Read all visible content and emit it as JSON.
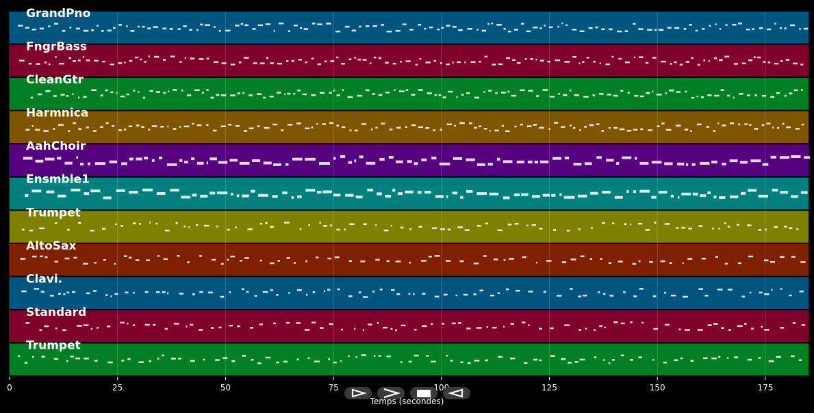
{
  "chart_data": {
    "type": "piano-roll",
    "xlabel": "Temps (secondes)",
    "xlim": [
      0,
      185
    ],
    "xticks": [
      0,
      25,
      50,
      75,
      100,
      125,
      150,
      175
    ],
    "grid": true,
    "tracks": [
      {
        "name": "GrandPno",
        "color": "#00557f"
      },
      {
        "name": "FngrBass",
        "color": "#7f002b"
      },
      {
        "name": "CleanGtr",
        "color": "#007f25"
      },
      {
        "name": "Harmnica",
        "color": "#7f5500"
      },
      {
        "name": "AahChoir",
        "color": "#55007f"
      },
      {
        "name": "Ensmble1",
        "color": "#007f7f"
      },
      {
        "name": "Trumpet",
        "color": "#7f7f00"
      },
      {
        "name": "AltoSax",
        "color": "#7f2000"
      },
      {
        "name": "Clavi.",
        "color": "#00557f"
      },
      {
        "name": "Standard",
        "color": "#7f002b"
      },
      {
        "name": "Trumpet",
        "color": "#007f25"
      }
    ]
  },
  "transport": {
    "play_icon": "play-icon",
    "fast_forward_icon": "fast-forward-icon",
    "stop_icon": "stop-icon",
    "rewind_icon": "rewind-icon"
  }
}
